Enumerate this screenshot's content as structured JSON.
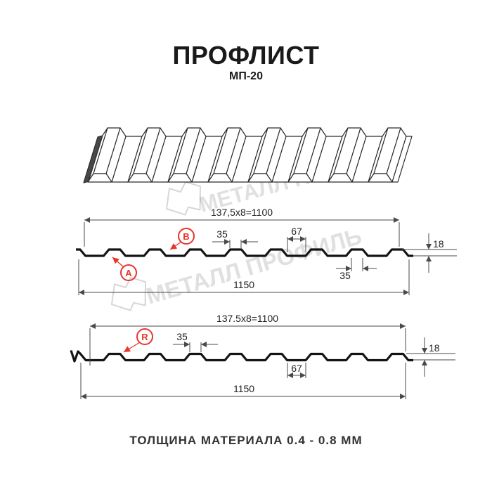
{
  "page": {
    "title": "ПРОФЛИСТ",
    "subtitle": "МП-20",
    "footer_note": "ТОЛЩИНА МАТЕРИАЛА 0.4 - 0.8 ММ"
  },
  "watermark": {
    "brand": "МЕТАЛЛ ПРОФИЛЬ"
  },
  "colors": {
    "accent_red": "#e8352b",
    "dim_line": "#4a4a4a",
    "profile_line": "#141414",
    "watermark_gray": "rgba(0,0,0,0.12)"
  },
  "front_view": {
    "label_a": "A",
    "label_b": "B",
    "dim_module": "137,5x8=1100",
    "dim_rib_width_top": "35",
    "dim_valley_width": "67",
    "dim_rib_width_bottom": "35",
    "dim_height": "18",
    "dim_overall": "1150"
  },
  "reverse_view": {
    "label_r": "R",
    "dim_module": "137.5x8=1100",
    "dim_rib_width": "35",
    "dim_valley_width": "67",
    "dim_height": "18",
    "dim_overall": "1150"
  }
}
